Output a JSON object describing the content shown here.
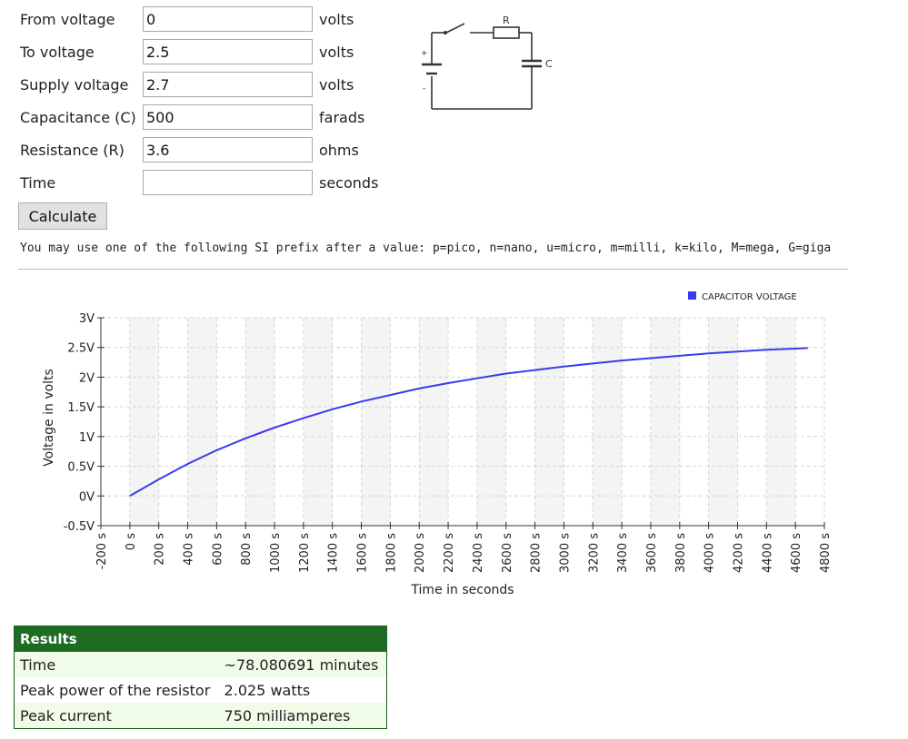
{
  "form": {
    "fields": [
      {
        "label": "From voltage",
        "value": "0",
        "unit": "volts"
      },
      {
        "label": "To voltage",
        "value": "2.5",
        "unit": "volts"
      },
      {
        "label": "Supply voltage",
        "value": "2.7",
        "unit": "volts"
      },
      {
        "label": "Capacitance (C)",
        "value": "500",
        "unit": "farads"
      },
      {
        "label": "Resistance (R)",
        "value": "3.6",
        "unit": "ohms"
      },
      {
        "label": "Time",
        "value": "",
        "unit": "seconds"
      }
    ],
    "calculate_label": "Calculate",
    "si_note": "You may use one of the following SI prefix after a value: p=pico, n=nano, u=micro, m=milli, k=kilo, M=mega, G=giga"
  },
  "circuit": {
    "resistor_label": "R",
    "capacitor_label": "C",
    "plus": "+",
    "minus": "-"
  },
  "chart_data": {
    "type": "line",
    "xlabel": "Time in seconds",
    "ylabel": "Voltage in volts",
    "xlim": [
      -200,
      4800
    ],
    "ylim": [
      -0.5,
      3
    ],
    "x_ticks": [
      "-200 s",
      "0 s",
      "200 s",
      "400 s",
      "600 s",
      "800 s",
      "1000 s",
      "1200 s",
      "1400 s",
      "1600 s",
      "1800 s",
      "2000 s",
      "2200 s",
      "2400 s",
      "2600 s",
      "2800 s",
      "3000 s",
      "3200 s",
      "3400 s",
      "3600 s",
      "3800 s",
      "4000 s",
      "4200 s",
      "4400 s",
      "4600 s",
      "4800 s"
    ],
    "y_ticks": [
      "3V",
      "2.5V",
      "2V",
      "1.5V",
      "1V",
      "0.5V",
      "0V",
      "-0.5V"
    ],
    "legend_position": "top-right",
    "grid": true,
    "series": [
      {
        "name": "CAPACITOR VOLTAGE",
        "color": "#3a3af0",
        "x": [
          0,
          200,
          400,
          600,
          800,
          1000,
          1200,
          1400,
          1600,
          1800,
          2000,
          2200,
          2400,
          2600,
          2800,
          3000,
          3200,
          3400,
          3600,
          3800,
          4000,
          4200,
          4400,
          4600,
          4685
        ],
        "y": [
          0,
          0.28,
          0.54,
          0.77,
          0.97,
          1.15,
          1.31,
          1.46,
          1.59,
          1.7,
          1.81,
          1.9,
          1.98,
          2.06,
          2.12,
          2.18,
          2.23,
          2.28,
          2.32,
          2.36,
          2.4,
          2.43,
          2.46,
          2.48,
          2.49
        ]
      }
    ]
  },
  "results": {
    "title": "Results",
    "rows": [
      {
        "label": "Time",
        "value": "~78.080691 minutes"
      },
      {
        "label": "Peak power of the resistor",
        "value": "2.025 watts"
      },
      {
        "label": "Peak current",
        "value": "750 milliamperes"
      }
    ]
  }
}
